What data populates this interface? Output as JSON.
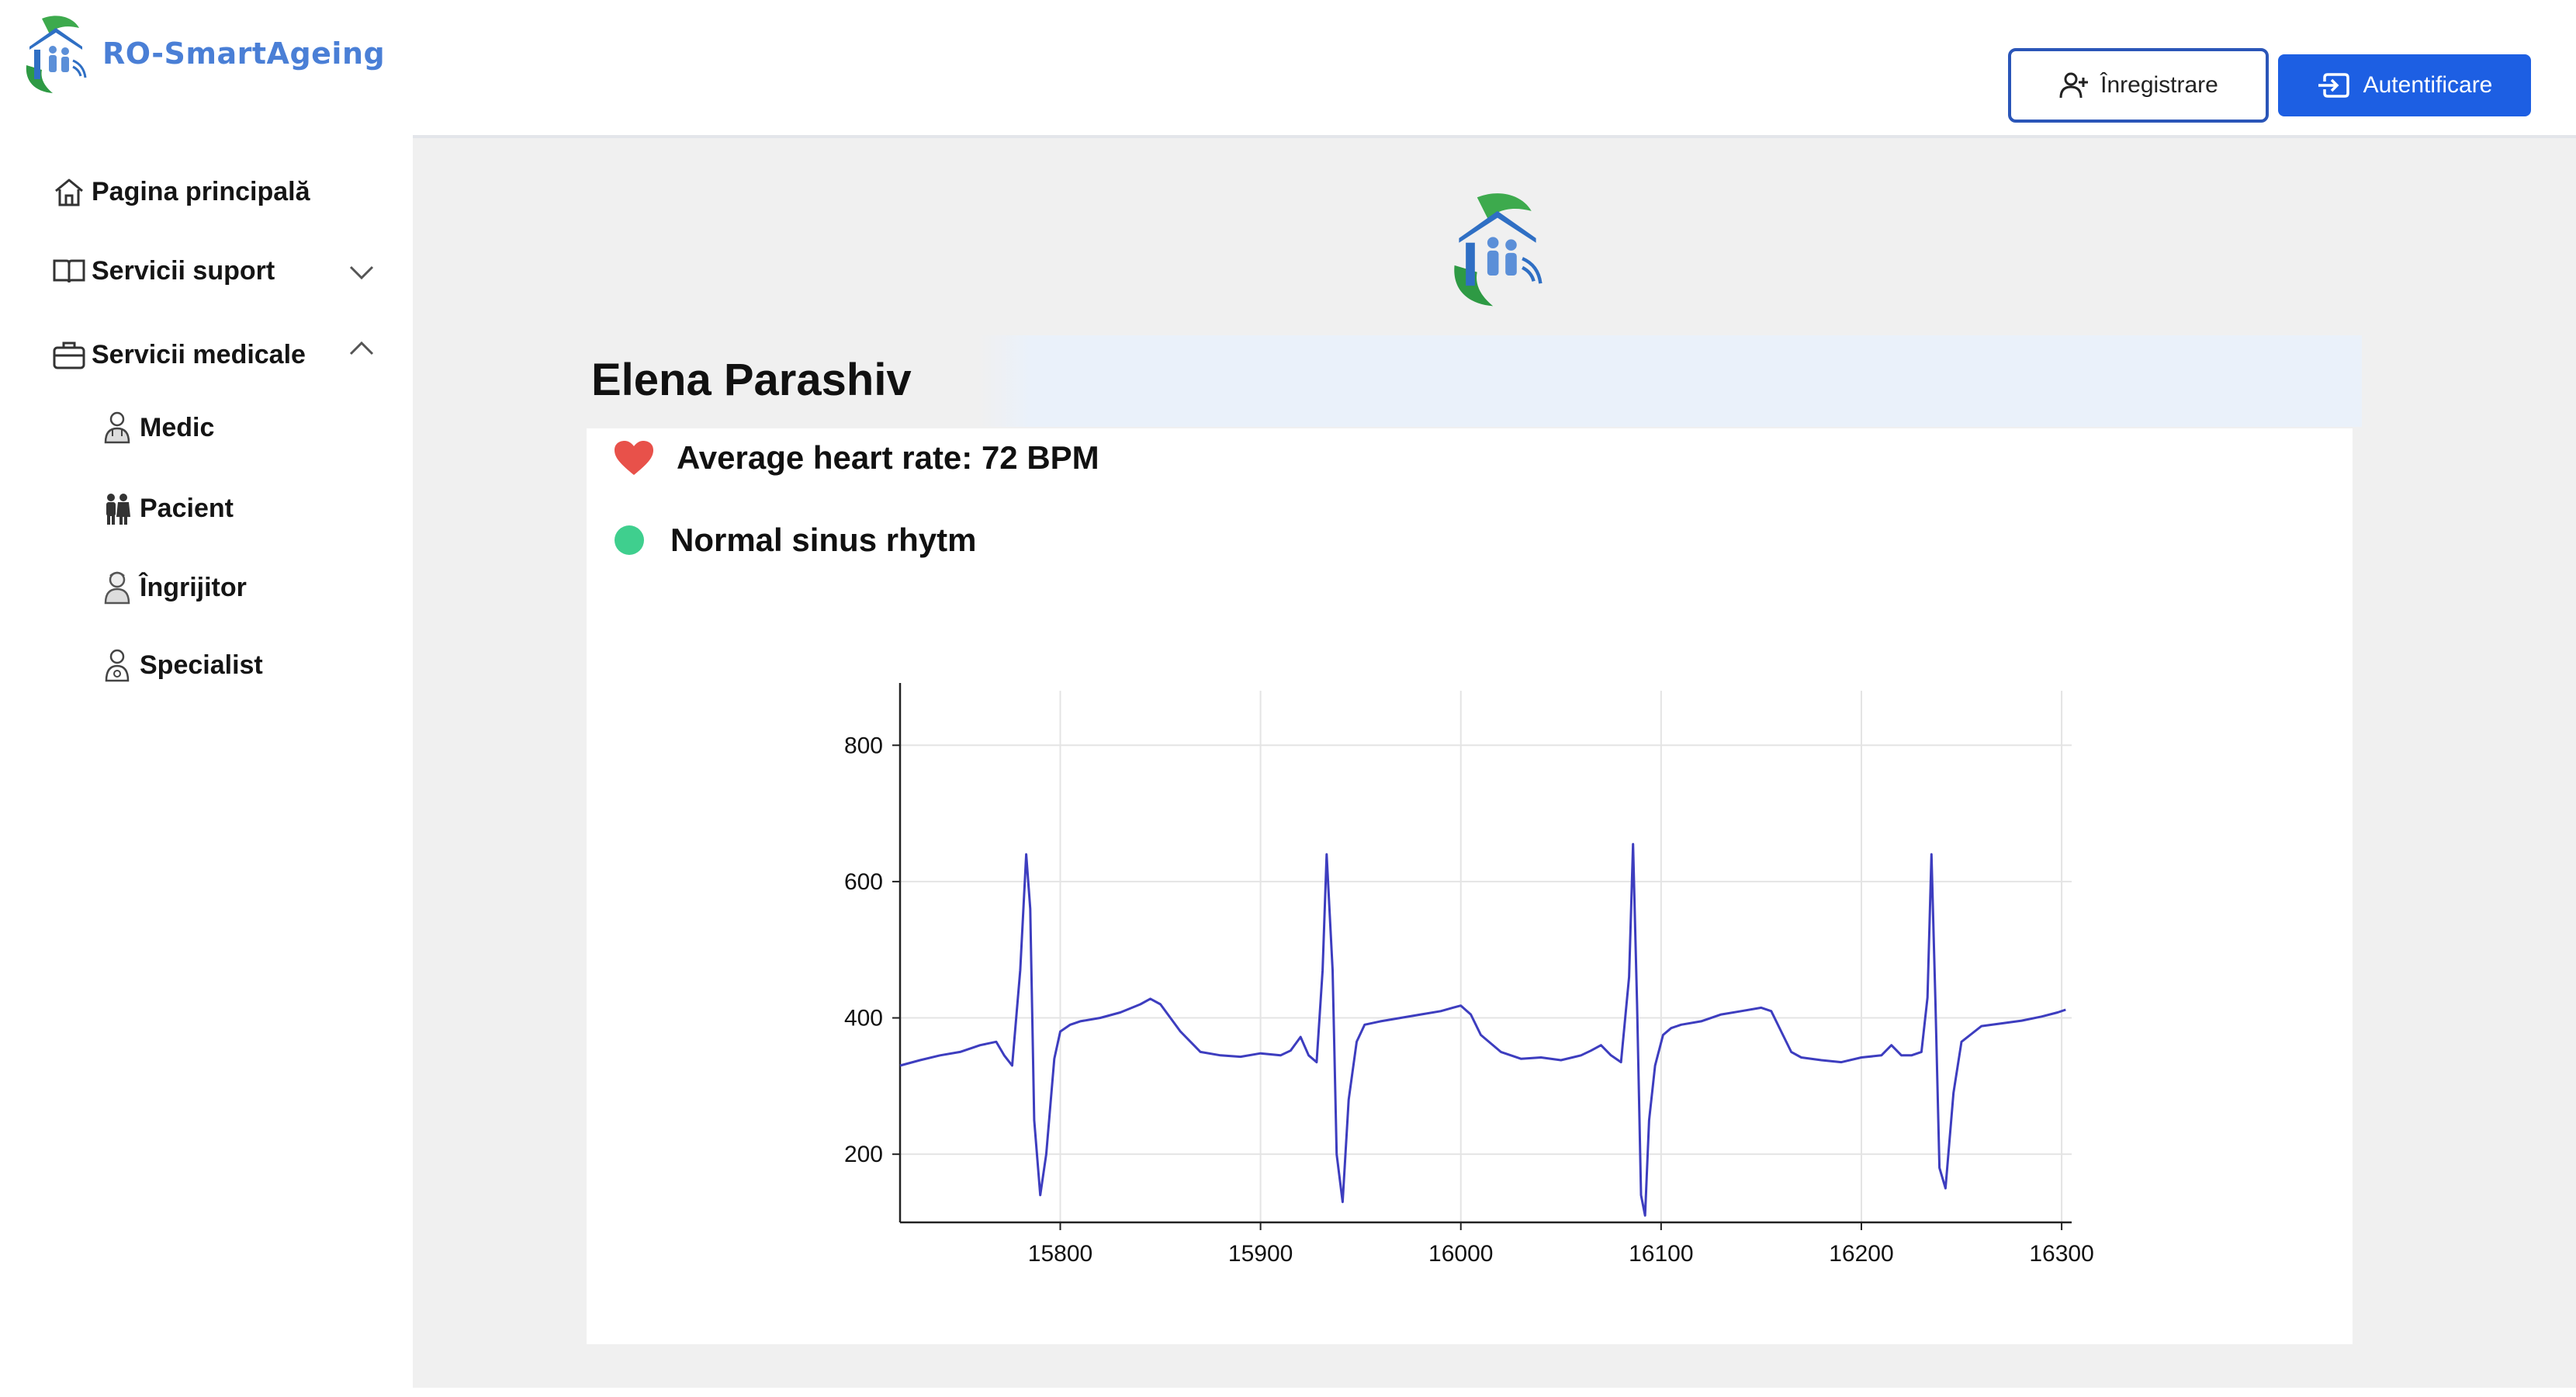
{
  "app": {
    "name": "RO-SmartAgeing",
    "accent_color": "#1d5fe3",
    "brand_color": "#4a7fd6"
  },
  "sidebar": {
    "items": [
      {
        "label": "Pagina principală",
        "icon": "home-icon"
      },
      {
        "label": "Servicii suport",
        "icon": "book-icon",
        "chevron": "chevron-down-icon"
      },
      {
        "label": "Servicii medicale",
        "icon": "briefcase-icon",
        "chevron": "chevron-up-icon"
      }
    ],
    "subitems": [
      {
        "label": "Medic",
        "icon": "doctor-icon"
      },
      {
        "label": "Pacient",
        "icon": "patients-icon"
      },
      {
        "label": "Îngrijitor",
        "icon": "caregiver-icon"
      },
      {
        "label": "Specialist",
        "icon": "specialist-icon"
      }
    ]
  },
  "header": {
    "register_label": "Înregistrare",
    "register_icon": "user-plus-icon",
    "login_label": "Autentificare",
    "login_icon": "login-icon"
  },
  "patient": {
    "name": "Elena Parashiv",
    "heart_rate_text": "Average heart rate: 72 BPM",
    "heart_icon": "heart-icon",
    "heart_color": "#e8514a",
    "rhythm_text": "Normal sinus rhytm",
    "rhythm_status_color": "#3fcf8e"
  },
  "chart_data": {
    "type": "line",
    "title": "",
    "xlabel": "",
    "ylabel": "",
    "x_ticks": [
      15800,
      15900,
      16000,
      16100,
      16200,
      16300
    ],
    "y_ticks": [
      200,
      400,
      600,
      800
    ],
    "xlim": [
      15720,
      16305
    ],
    "ylim": [
      100,
      880
    ],
    "grid": true,
    "line_color": "#3d3dbf",
    "series": [
      {
        "x": [
          15720,
          15730,
          15740,
          15750,
          15760,
          15768,
          15772,
          15776,
          15780,
          15783,
          15785,
          15787,
          15790,
          15793,
          15797,
          15800,
          15805,
          15810,
          15820,
          15830,
          15840,
          15845,
          15850,
          15860,
          15870,
          15880,
          15890,
          15900,
          15910,
          15915,
          15920,
          15924,
          15928,
          15931,
          15933,
          15936,
          15938,
          15941,
          15944,
          15948,
          15952,
          15960,
          15970,
          15980,
          15990,
          15996,
          16000,
          16005,
          16010,
          16020,
          16030,
          16040,
          16050,
          16060,
          16065,
          16070,
          16075,
          16080,
          16084,
          16086,
          16088,
          16090,
          16092,
          16094,
          16097,
          16101,
          16105,
          16110,
          16120,
          16130,
          16140,
          16150,
          16155,
          16160,
          16165,
          16170,
          16180,
          16190,
          16200,
          16210,
          16215,
          16220,
          16225,
          16230,
          16233,
          16235,
          16237,
          16239,
          16242,
          16246,
          16250,
          16260,
          16270,
          16280,
          16290,
          16298,
          16302
        ],
        "y": [
          330,
          338,
          345,
          350,
          360,
          365,
          345,
          330,
          470,
          640,
          560,
          250,
          140,
          200,
          340,
          380,
          390,
          395,
          400,
          408,
          420,
          428,
          420,
          380,
          350,
          345,
          343,
          348,
          345,
          352,
          372,
          345,
          335,
          470,
          640,
          470,
          200,
          130,
          280,
          365,
          390,
          395,
          400,
          405,
          410,
          415,
          418,
          405,
          375,
          350,
          340,
          342,
          338,
          345,
          352,
          360,
          345,
          335,
          460,
          655,
          420,
          140,
          110,
          250,
          330,
          375,
          385,
          390,
          395,
          405,
          410,
          415,
          410,
          380,
          350,
          342,
          338,
          335,
          342,
          345,
          360,
          345,
          345,
          350,
          430,
          640,
          420,
          180,
          150,
          290,
          365,
          388,
          392,
          396,
          402,
          408,
          412
        ]
      }
    ]
  }
}
